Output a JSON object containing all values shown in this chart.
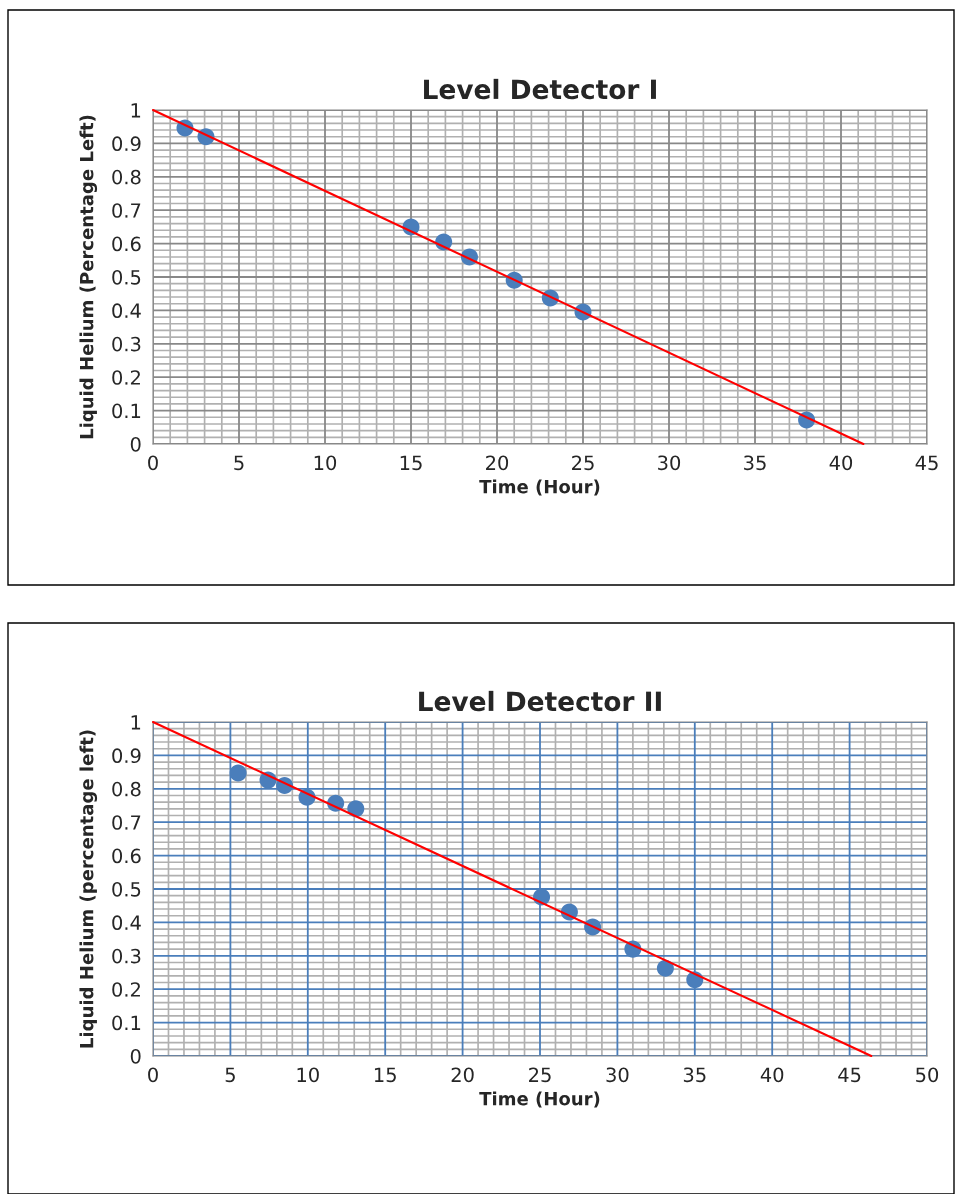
{
  "chart_data": [
    {
      "type": "scatter",
      "title": "Level Detector I",
      "xlabel": "Time (Hour)",
      "ylabel": "Liquid Helium (Percentage Left)",
      "xlim": [
        0,
        45
      ],
      "xticks": [
        0,
        5,
        10,
        15,
        20,
        25,
        30,
        35,
        40,
        45
      ],
      "ylim": [
        0,
        1
      ],
      "yticks": [
        0,
        0.1,
        0.2,
        0.3,
        0.4,
        0.5,
        0.6,
        0.7,
        0.8,
        0.9,
        1
      ],
      "grid": true,
      "series": [
        {
          "marker": "circle",
          "color": "#4a7ebb",
          "x": [
            1.86,
            3.08,
            15.0,
            16.9,
            18.4,
            21.0,
            23.1,
            25.0,
            38.0
          ],
          "values": [
            0.946,
            0.92,
            0.65,
            0.605,
            0.56,
            0.49,
            0.437,
            0.395,
            0.072
          ]
        },
        {
          "type": "line",
          "color": "#ff0000",
          "x": [
            0,
            41.3
          ],
          "values": [
            1,
            0
          ]
        }
      ]
    },
    {
      "type": "scatter",
      "title": "Level Detector II",
      "xlabel": "Time (Hour)",
      "ylabel": "Liquid Helium (percentage left)",
      "xlim": [
        0,
        50
      ],
      "xticks": [
        0,
        5,
        10,
        15,
        20,
        25,
        30,
        35,
        40,
        45,
        50
      ],
      "ylim": [
        0,
        1
      ],
      "yticks": [
        0,
        0.1,
        0.2,
        0.3,
        0.4,
        0.5,
        0.6,
        0.7,
        0.8,
        0.9,
        1
      ],
      "grid": true,
      "series": [
        {
          "marker": "circle",
          "color": "#4a7ebb",
          "x": [
            5.5,
            7.43,
            8.5,
            9.95,
            11.8,
            13.1,
            25.1,
            26.9,
            28.4,
            31.0,
            33.1,
            35.0
          ],
          "values": [
            0.847,
            0.826,
            0.81,
            0.775,
            0.757,
            0.74,
            0.476,
            0.431,
            0.386,
            0.32,
            0.263,
            0.228
          ]
        },
        {
          "type": "line",
          "color": "#ff0000",
          "x": [
            0,
            46.4
          ],
          "values": [
            1,
            0
          ]
        }
      ]
    }
  ]
}
